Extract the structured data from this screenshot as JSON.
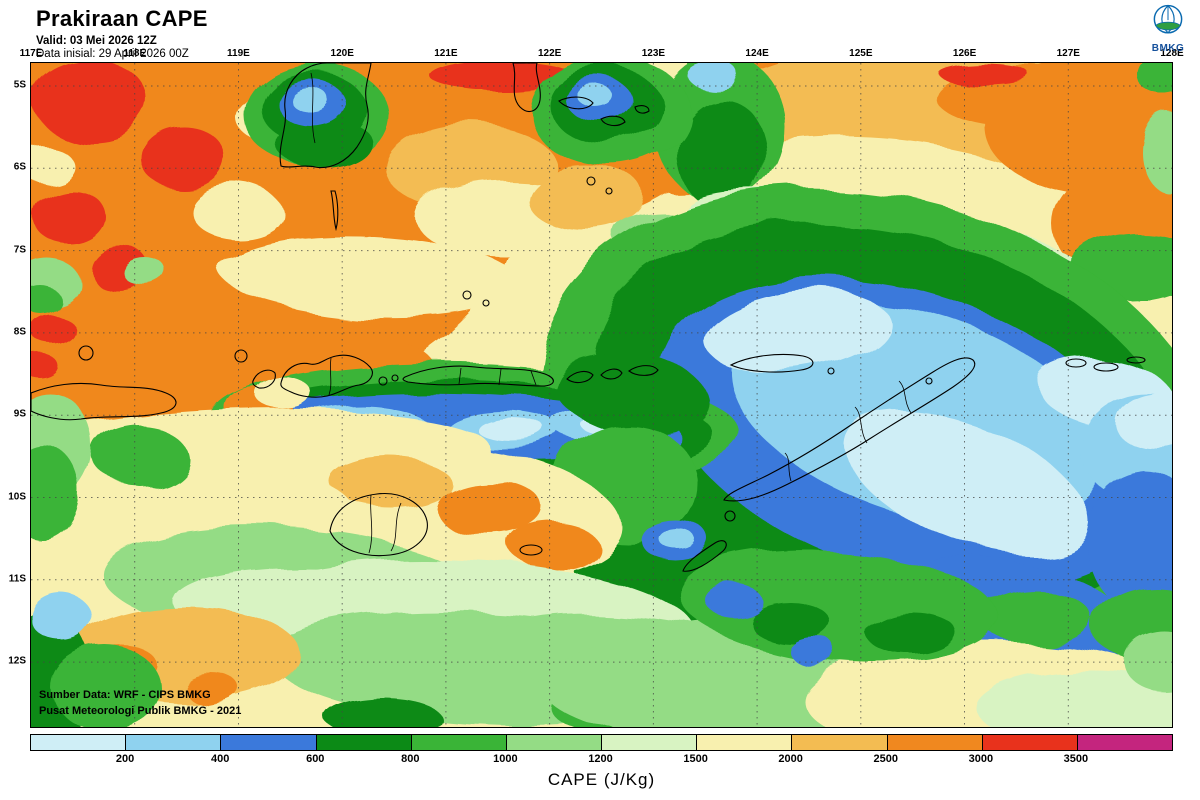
{
  "header": {
    "title": "Prakiraan CAPE",
    "valid_line": "Valid: 03 Mei 2026 12Z",
    "init_line": "Data inisial: 29 April 2026 00Z",
    "logo_text": "BMKG"
  },
  "map": {
    "lon_ticks": [
      "117E",
      "118E",
      "119E",
      "120E",
      "121E",
      "122E",
      "123E",
      "124E",
      "125E",
      "126E",
      "127E",
      "128E"
    ],
    "lat_ticks": [
      "5S",
      "6S",
      "7S",
      "8S",
      "9S",
      "10S",
      "11S",
      "12S"
    ],
    "source_line1": "Sumber Data: WRF - CIPS BMKG",
    "source_line2": "Pusat Meteorologi Publik BMKG - 2021"
  },
  "colorbar": {
    "title": "CAPE (J/Kg)",
    "tick_labels": [
      "200",
      "400",
      "600",
      "800",
      "1000",
      "1200",
      "1500",
      "2000",
      "2500",
      "3000",
      "3500"
    ],
    "segment_colors": [
      "#cfeef6",
      "#8fd2ef",
      "#3b79db",
      "#0c8a16",
      "#3ab437",
      "#94dc85",
      "#d8f3c2",
      "#f8f0af",
      "#f3bc52",
      "#f0881f",
      "#e8321c",
      "#c4257e"
    ]
  }
}
